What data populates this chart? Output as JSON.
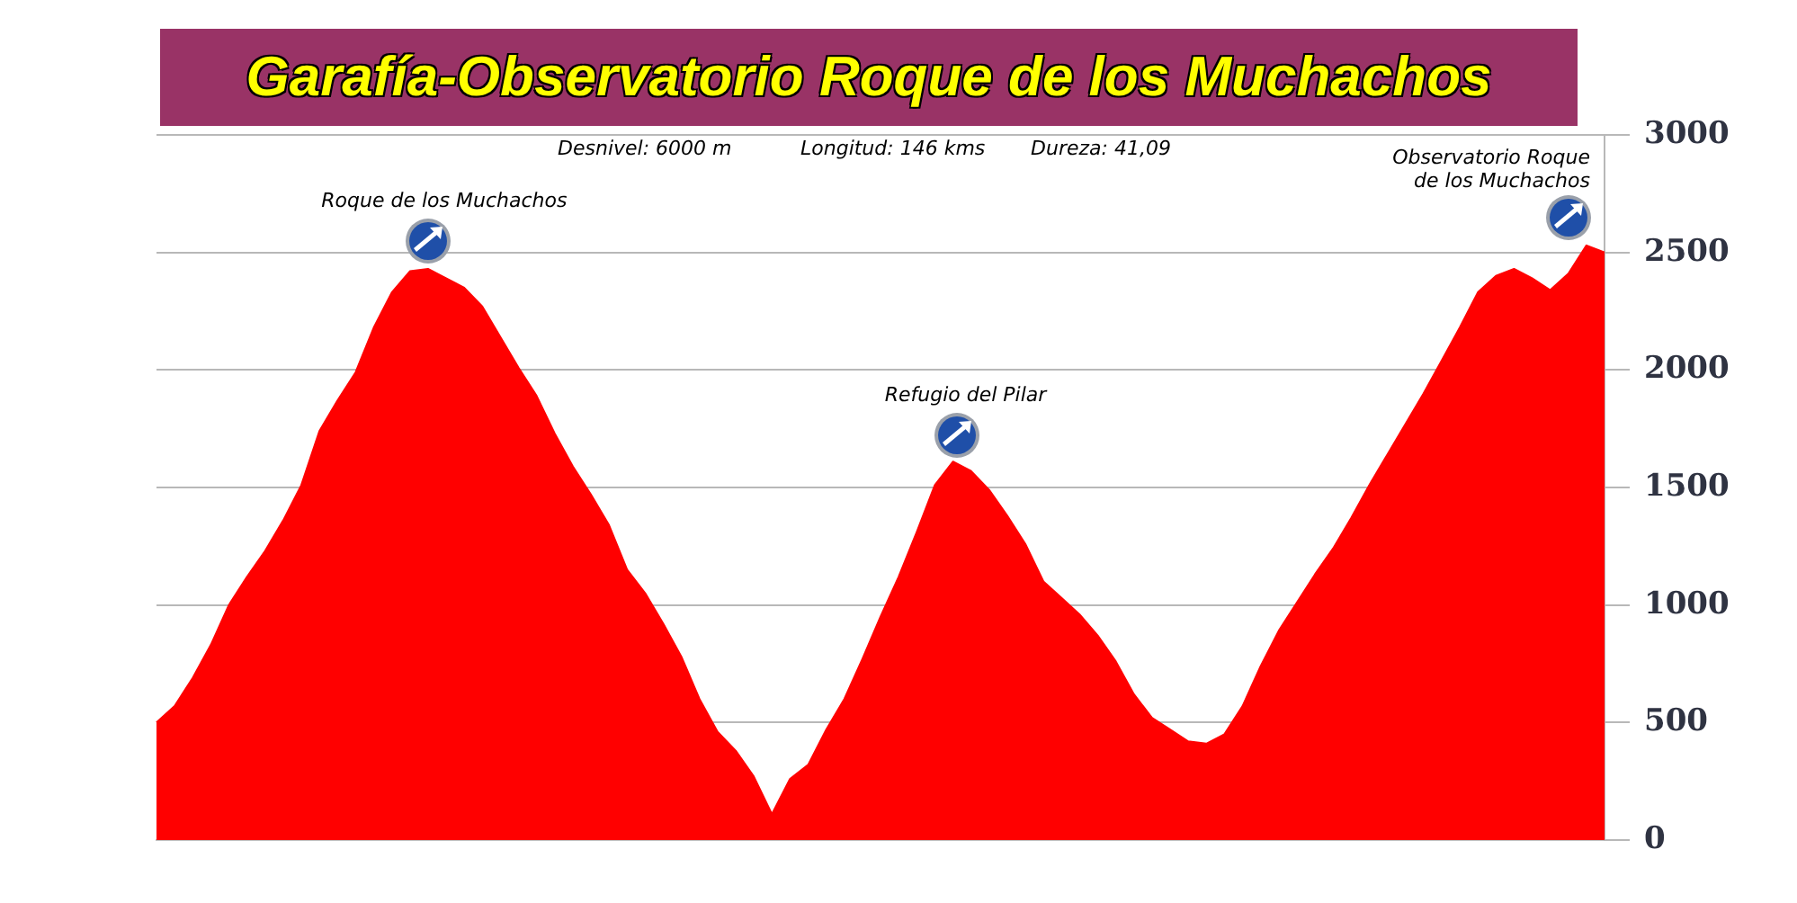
{
  "chart_data": {
    "type": "area",
    "title": "Garafía-Observatorio Roque de los Muchachos",
    "annotations": [
      "Desnivel: 6000 m",
      "Longitud: 146 kms",
      "Dureza: 41,09",
      {
        "text": "Roque de los Muchachos",
        "y": 2430
      },
      {
        "text": "Refugio del Pilar",
        "y": 1610
      },
      "Observatorio Roque de los Muchachos"
    ],
    "categories": [
      null,
      null,
      null,
      null,
      null,
      null,
      null,
      null,
      null,
      null,
      null,
      null,
      null,
      null,
      null,
      null,
      null,
      null,
      null,
      null,
      null,
      null,
      null,
      null,
      null,
      null,
      null,
      null,
      null,
      null,
      null,
      null,
      null,
      null,
      null,
      null,
      null,
      null,
      null,
      null,
      null,
      null,
      null,
      null,
      null,
      null,
      null,
      null,
      null,
      null,
      null,
      null,
      null,
      null,
      null,
      null,
      null,
      null,
      null,
      null,
      null,
      null,
      null,
      null,
      null,
      null,
      null,
      null,
      null,
      null,
      null,
      null,
      null,
      null,
      null,
      null,
      null,
      null,
      null,
      null,
      null
    ],
    "values": [
      500,
      570,
      690,
      830,
      1000,
      1120,
      1230,
      1360,
      1510,
      1740,
      1870,
      1990,
      2180,
      2330,
      2420,
      2430,
      2390,
      2350,
      2270,
      2140,
      2010,
      1890,
      1730,
      1590,
      1470,
      1340,
      1150,
      1050,
      920,
      780,
      600,
      460,
      380,
      270,
      110,
      260,
      320,
      470,
      600,
      770,
      950,
      1120,
      1310,
      1510,
      1610,
      1570,
      1490,
      1380,
      1260,
      1100,
      1030,
      960,
      870,
      760,
      620,
      520,
      470,
      420,
      410,
      450,
      570,
      740,
      890,
      1010,
      1130,
      1240,
      1370,
      1510,
      1640,
      1770,
      1900,
      2040,
      2180,
      2330,
      2400,
      2430,
      2390,
      2340,
      2410,
      2530,
      2500
    ],
    "color": "#ff0000",
    "ylim": [
      0,
      3000
    ],
    "yticks": [
      0,
      500,
      1000,
      1500,
      2000,
      2500,
      3000
    ],
    "grid": "y",
    "tick_labels": "y"
  }
}
